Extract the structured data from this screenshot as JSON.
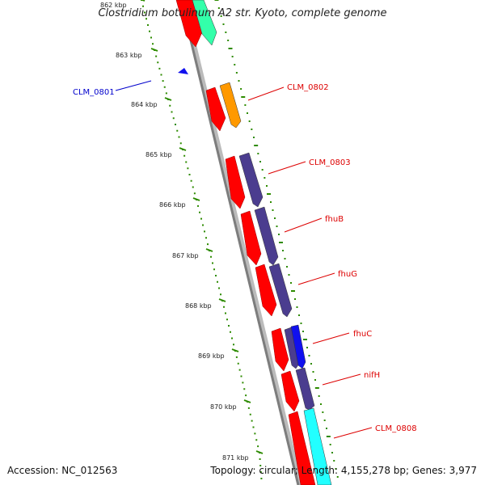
{
  "title": "Clostridium botulinum A2 str. Kyoto, complete genome",
  "footer": {
    "accession": "Accession: NC_012563",
    "summary": "Topology: circular; Length: 4,155,278 bp; Genes: 3,977"
  },
  "scale_labels": [
    "862 kbp",
    "863 kbp",
    "864 kbp",
    "865 kbp",
    "866 kbp",
    "867 kbp",
    "868 kbp",
    "869 kbp",
    "870 kbp",
    "871 kbp"
  ],
  "gene_labels": [
    {
      "name": "CLM_0801",
      "color": "#0000cc"
    },
    {
      "name": "CLM_0802",
      "color": "#dd0000"
    },
    {
      "name": "CLM_0803",
      "color": "#dd0000"
    },
    {
      "name": "fhuB",
      "color": "#dd0000"
    },
    {
      "name": "fhuG",
      "color": "#dd0000"
    },
    {
      "name": "fhuC",
      "color": "#dd0000"
    },
    {
      "name": "nifH",
      "color": "#dd0000"
    },
    {
      "name": "CLM_0808",
      "color": "#dd0000"
    }
  ],
  "colors": {
    "backbone": "#8a8a8a",
    "cds": "#ff0000",
    "tick": "#2e8b00",
    "orange": "#ff9900",
    "purple": "#4b3d8f",
    "blue": "#1010ee",
    "teal": "#33ffaa",
    "cyan": "#22ffff"
  }
}
